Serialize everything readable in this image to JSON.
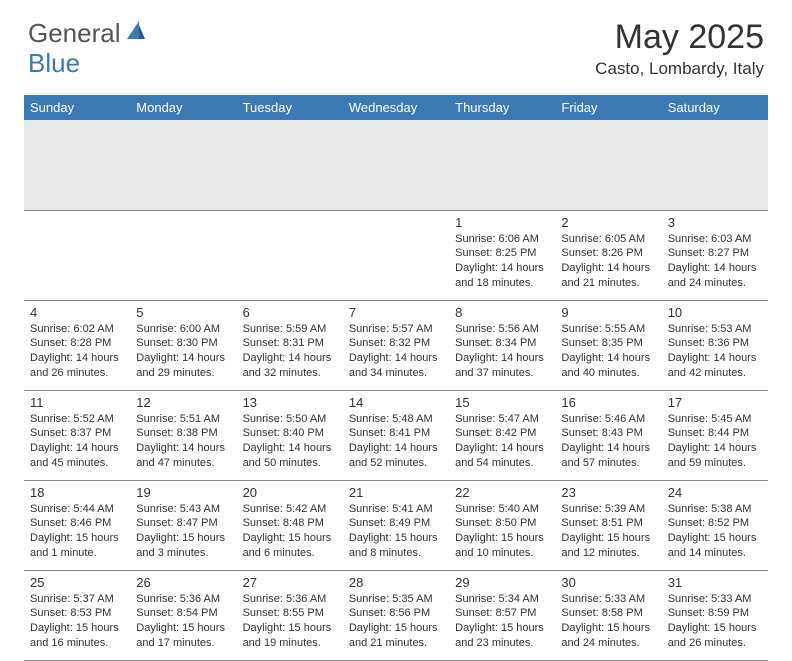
{
  "logo": {
    "text1": "General",
    "text2": "Blue"
  },
  "title": "May 2025",
  "location": "Casto, Lombardy, Italy",
  "headers": [
    "Sunday",
    "Monday",
    "Tuesday",
    "Wednesday",
    "Thursday",
    "Friday",
    "Saturday"
  ],
  "colors": {
    "header_bg": "#3b7ab5",
    "header_text": "#ffffff",
    "spacer_bg": "#e8e8e8",
    "border": "#888888",
    "body_text": "#333333",
    "logo_gray": "#555555",
    "logo_blue": "#3b7ab5"
  },
  "weeks": [
    [
      null,
      null,
      null,
      null,
      {
        "n": "1",
        "sr": "6:06 AM",
        "ss": "8:25 PM",
        "dl": "14 hours and 18 minutes."
      },
      {
        "n": "2",
        "sr": "6:05 AM",
        "ss": "8:26 PM",
        "dl": "14 hours and 21 minutes."
      },
      {
        "n": "3",
        "sr": "6:03 AM",
        "ss": "8:27 PM",
        "dl": "14 hours and 24 minutes."
      }
    ],
    [
      {
        "n": "4",
        "sr": "6:02 AM",
        "ss": "8:28 PM",
        "dl": "14 hours and 26 minutes."
      },
      {
        "n": "5",
        "sr": "6:00 AM",
        "ss": "8:30 PM",
        "dl": "14 hours and 29 minutes."
      },
      {
        "n": "6",
        "sr": "5:59 AM",
        "ss": "8:31 PM",
        "dl": "14 hours and 32 minutes."
      },
      {
        "n": "7",
        "sr": "5:57 AM",
        "ss": "8:32 PM",
        "dl": "14 hours and 34 minutes."
      },
      {
        "n": "8",
        "sr": "5:56 AM",
        "ss": "8:34 PM",
        "dl": "14 hours and 37 minutes."
      },
      {
        "n": "9",
        "sr": "5:55 AM",
        "ss": "8:35 PM",
        "dl": "14 hours and 40 minutes."
      },
      {
        "n": "10",
        "sr": "5:53 AM",
        "ss": "8:36 PM",
        "dl": "14 hours and 42 minutes."
      }
    ],
    [
      {
        "n": "11",
        "sr": "5:52 AM",
        "ss": "8:37 PM",
        "dl": "14 hours and 45 minutes."
      },
      {
        "n": "12",
        "sr": "5:51 AM",
        "ss": "8:38 PM",
        "dl": "14 hours and 47 minutes."
      },
      {
        "n": "13",
        "sr": "5:50 AM",
        "ss": "8:40 PM",
        "dl": "14 hours and 50 minutes."
      },
      {
        "n": "14",
        "sr": "5:48 AM",
        "ss": "8:41 PM",
        "dl": "14 hours and 52 minutes."
      },
      {
        "n": "15",
        "sr": "5:47 AM",
        "ss": "8:42 PM",
        "dl": "14 hours and 54 minutes."
      },
      {
        "n": "16",
        "sr": "5:46 AM",
        "ss": "8:43 PM",
        "dl": "14 hours and 57 minutes."
      },
      {
        "n": "17",
        "sr": "5:45 AM",
        "ss": "8:44 PM",
        "dl": "14 hours and 59 minutes."
      }
    ],
    [
      {
        "n": "18",
        "sr": "5:44 AM",
        "ss": "8:46 PM",
        "dl": "15 hours and 1 minute."
      },
      {
        "n": "19",
        "sr": "5:43 AM",
        "ss": "8:47 PM",
        "dl": "15 hours and 3 minutes."
      },
      {
        "n": "20",
        "sr": "5:42 AM",
        "ss": "8:48 PM",
        "dl": "15 hours and 6 minutes."
      },
      {
        "n": "21",
        "sr": "5:41 AM",
        "ss": "8:49 PM",
        "dl": "15 hours and 8 minutes."
      },
      {
        "n": "22",
        "sr": "5:40 AM",
        "ss": "8:50 PM",
        "dl": "15 hours and 10 minutes."
      },
      {
        "n": "23",
        "sr": "5:39 AM",
        "ss": "8:51 PM",
        "dl": "15 hours and 12 minutes."
      },
      {
        "n": "24",
        "sr": "5:38 AM",
        "ss": "8:52 PM",
        "dl": "15 hours and 14 minutes."
      }
    ],
    [
      {
        "n": "25",
        "sr": "5:37 AM",
        "ss": "8:53 PM",
        "dl": "15 hours and 16 minutes."
      },
      {
        "n": "26",
        "sr": "5:36 AM",
        "ss": "8:54 PM",
        "dl": "15 hours and 17 minutes."
      },
      {
        "n": "27",
        "sr": "5:36 AM",
        "ss": "8:55 PM",
        "dl": "15 hours and 19 minutes."
      },
      {
        "n": "28",
        "sr": "5:35 AM",
        "ss": "8:56 PM",
        "dl": "15 hours and 21 minutes."
      },
      {
        "n": "29",
        "sr": "5:34 AM",
        "ss": "8:57 PM",
        "dl": "15 hours and 23 minutes."
      },
      {
        "n": "30",
        "sr": "5:33 AM",
        "ss": "8:58 PM",
        "dl": "15 hours and 24 minutes."
      },
      {
        "n": "31",
        "sr": "5:33 AM",
        "ss": "8:59 PM",
        "dl": "15 hours and 26 minutes."
      }
    ]
  ]
}
